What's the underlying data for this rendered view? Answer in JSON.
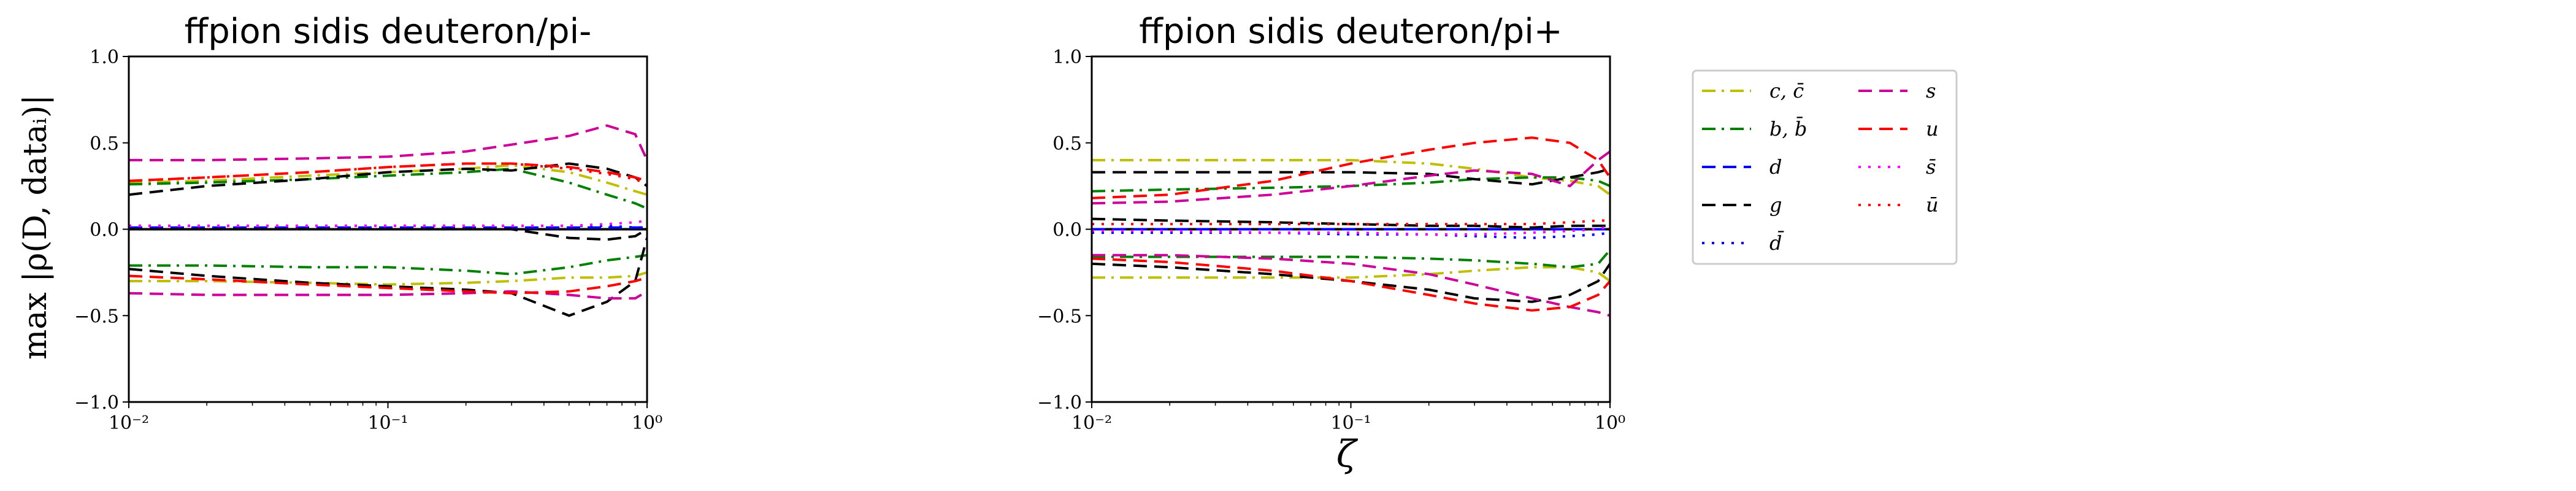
{
  "figure": {
    "ylabel": "max |ρ(D, dataᵢ)|",
    "xlabel": "ζ"
  },
  "legend": {
    "entries": [
      {
        "key": "c",
        "label": "c, c̄",
        "color": "#bfbf00",
        "dash": "dashdot"
      },
      {
        "key": "b",
        "label": "b, b̄",
        "color": "#008000",
        "dash": "dashdot"
      },
      {
        "key": "d",
        "label": "d",
        "color": "#0000ff",
        "dash": "dashed"
      },
      {
        "key": "g",
        "label": "g",
        "color": "#000000",
        "dash": "dashed"
      },
      {
        "key": "dbar",
        "label": "d̄",
        "color": "#0000ff",
        "dash": "dotted"
      },
      {
        "key": "s",
        "label": "s",
        "color": "#cc0099",
        "dash": "dashed"
      },
      {
        "key": "u",
        "label": "u",
        "color": "#ff0000",
        "dash": "dashed"
      },
      {
        "key": "sbar",
        "label": "s̄",
        "color": "#ff00ff",
        "dash": "dotted"
      },
      {
        "key": "ubar",
        "label": "ū",
        "color": "#ff0000",
        "dash": "dotted"
      }
    ]
  },
  "chart_data": [
    {
      "type": "line",
      "title": "ffpion sidis deuteron/pi-",
      "xscale": "log",
      "xlim": [
        0.01,
        1.0
      ],
      "ylim": [
        -1.0,
        1.0
      ],
      "xticks": [
        "10⁻²",
        "10⁻¹",
        "10⁰"
      ],
      "yticks": [
        "−1.0",
        "−0.5",
        "0.0",
        "0.5",
        "1.0"
      ],
      "x": [
        0.01,
        0.02,
        0.05,
        0.1,
        0.2,
        0.3,
        0.5,
        0.7,
        0.9,
        1.0
      ],
      "series": [
        {
          "key": "c",
          "values": [
            0.27,
            0.28,
            0.31,
            0.33,
            0.35,
            0.37,
            0.33,
            0.27,
            0.22,
            0.2
          ]
        },
        {
          "key": "c",
          "values": [
            -0.3,
            -0.3,
            -0.31,
            -0.32,
            -0.31,
            -0.3,
            -0.28,
            -0.28,
            -0.27,
            -0.25
          ]
        },
        {
          "key": "b",
          "values": [
            0.26,
            0.27,
            0.29,
            0.31,
            0.33,
            0.35,
            0.27,
            0.2,
            0.15,
            0.12
          ]
        },
        {
          "key": "b",
          "values": [
            -0.21,
            -0.21,
            -0.22,
            -0.22,
            -0.24,
            -0.26,
            -0.22,
            -0.18,
            -0.16,
            -0.15
          ]
        },
        {
          "key": "d",
          "values": [
            0.01,
            0.01,
            0.01,
            0.01,
            0.01,
            0.01,
            0.01,
            0.01,
            0.01,
            0.01
          ]
        },
        {
          "key": "g",
          "values": [
            0.2,
            0.25,
            0.29,
            0.33,
            0.35,
            0.34,
            0.38,
            0.35,
            0.3,
            0.25
          ]
        },
        {
          "key": "g",
          "values": [
            -0.23,
            -0.27,
            -0.31,
            -0.33,
            -0.35,
            -0.37,
            -0.5,
            -0.42,
            -0.3,
            -0.05
          ]
        },
        {
          "key": "g",
          "values": [
            0.0,
            0.0,
            0.0,
            0.0,
            0.0,
            0.0,
            -0.05,
            -0.06,
            -0.04,
            0.0
          ]
        },
        {
          "key": "dbar",
          "values": [
            0.02,
            0.02,
            0.02,
            0.02,
            0.02,
            0.02,
            0.02,
            0.02,
            0.01,
            0.01
          ]
        },
        {
          "key": "s",
          "values": [
            0.4,
            0.4,
            0.41,
            0.42,
            0.45,
            0.49,
            0.54,
            0.6,
            0.55,
            0.4
          ]
        },
        {
          "key": "s",
          "values": [
            -0.37,
            -0.38,
            -0.38,
            -0.38,
            -0.37,
            -0.36,
            -0.38,
            -0.4,
            -0.4,
            -0.36
          ]
        },
        {
          "key": "u",
          "values": [
            0.28,
            0.3,
            0.33,
            0.36,
            0.38,
            0.38,
            0.36,
            0.33,
            0.3,
            0.28
          ]
        },
        {
          "key": "u",
          "values": [
            -0.27,
            -0.29,
            -0.32,
            -0.34,
            -0.36,
            -0.37,
            -0.36,
            -0.33,
            -0.3,
            -0.28
          ]
        },
        {
          "key": "sbar",
          "values": [
            0.02,
            0.02,
            0.02,
            0.02,
            0.02,
            0.02,
            0.02,
            0.03,
            0.04,
            0.05
          ]
        },
        {
          "key": "ubar",
          "values": [
            0.28,
            0.3,
            0.33,
            0.36,
            0.38,
            0.38,
            0.35,
            0.32,
            0.29,
            0.26
          ]
        }
      ]
    },
    {
      "type": "line",
      "title": "ffpion sidis deuteron/pi+",
      "xscale": "log",
      "xlim": [
        0.01,
        1.0
      ],
      "ylim": [
        -1.0,
        1.0
      ],
      "xticks": [
        "10⁻²",
        "10⁻¹",
        "10⁰"
      ],
      "yticks": [
        "−1.0",
        "−0.5",
        "0.0",
        "0.5",
        "1.0"
      ],
      "x": [
        0.01,
        0.02,
        0.05,
        0.1,
        0.2,
        0.3,
        0.5,
        0.7,
        0.9,
        1.0
      ],
      "series": [
        {
          "key": "c",
          "values": [
            0.4,
            0.4,
            0.4,
            0.4,
            0.38,
            0.35,
            0.3,
            0.28,
            0.25,
            0.2
          ]
        },
        {
          "key": "c",
          "values": [
            -0.28,
            -0.28,
            -0.28,
            -0.28,
            -0.26,
            -0.24,
            -0.22,
            -0.22,
            -0.25,
            -0.3
          ]
        },
        {
          "key": "b",
          "values": [
            0.22,
            0.23,
            0.24,
            0.25,
            0.27,
            0.29,
            0.3,
            0.3,
            0.28,
            0.25
          ]
        },
        {
          "key": "b",
          "values": [
            -0.16,
            -0.16,
            -0.16,
            -0.16,
            -0.17,
            -0.18,
            -0.2,
            -0.22,
            -0.2,
            -0.12
          ]
        },
        {
          "key": "d",
          "values": [
            0.0,
            0.0,
            0.0,
            0.0,
            0.0,
            0.0,
            0.0,
            0.0,
            0.0,
            0.0
          ]
        },
        {
          "key": "g",
          "values": [
            0.33,
            0.33,
            0.33,
            0.33,
            0.32,
            0.29,
            0.26,
            0.3,
            0.33,
            0.35
          ]
        },
        {
          "key": "g",
          "values": [
            -0.2,
            -0.22,
            -0.26,
            -0.3,
            -0.35,
            -0.4,
            -0.42,
            -0.38,
            -0.3,
            -0.2
          ]
        },
        {
          "key": "g",
          "values": [
            0.06,
            0.05,
            0.04,
            0.03,
            0.02,
            0.02,
            0.01,
            0.02,
            0.02,
            0.02
          ]
        },
        {
          "key": "dbar",
          "values": [
            -0.02,
            -0.02,
            -0.02,
            -0.03,
            -0.03,
            -0.04,
            -0.05,
            -0.04,
            -0.03,
            -0.02
          ]
        },
        {
          "key": "s",
          "values": [
            0.15,
            0.16,
            0.2,
            0.25,
            0.31,
            0.34,
            0.32,
            0.25,
            0.4,
            0.45
          ]
        },
        {
          "key": "s",
          "values": [
            -0.15,
            -0.15,
            -0.17,
            -0.2,
            -0.26,
            -0.32,
            -0.4,
            -0.45,
            -0.48,
            -0.5
          ]
        },
        {
          "key": "u",
          "values": [
            0.18,
            0.2,
            0.28,
            0.38,
            0.46,
            0.5,
            0.53,
            0.5,
            0.4,
            0.3
          ]
        },
        {
          "key": "u",
          "values": [
            -0.17,
            -0.19,
            -0.24,
            -0.3,
            -0.38,
            -0.43,
            -0.47,
            -0.45,
            -0.38,
            -0.3
          ]
        },
        {
          "key": "sbar",
          "values": [
            -0.01,
            -0.01,
            -0.02,
            -0.02,
            -0.03,
            -0.03,
            -0.02,
            -0.01,
            0.0,
            0.02
          ]
        },
        {
          "key": "ubar",
          "values": [
            0.03,
            0.03,
            0.03,
            0.03,
            0.03,
            0.03,
            0.03,
            0.04,
            0.05,
            0.05
          ]
        }
      ]
    }
  ]
}
